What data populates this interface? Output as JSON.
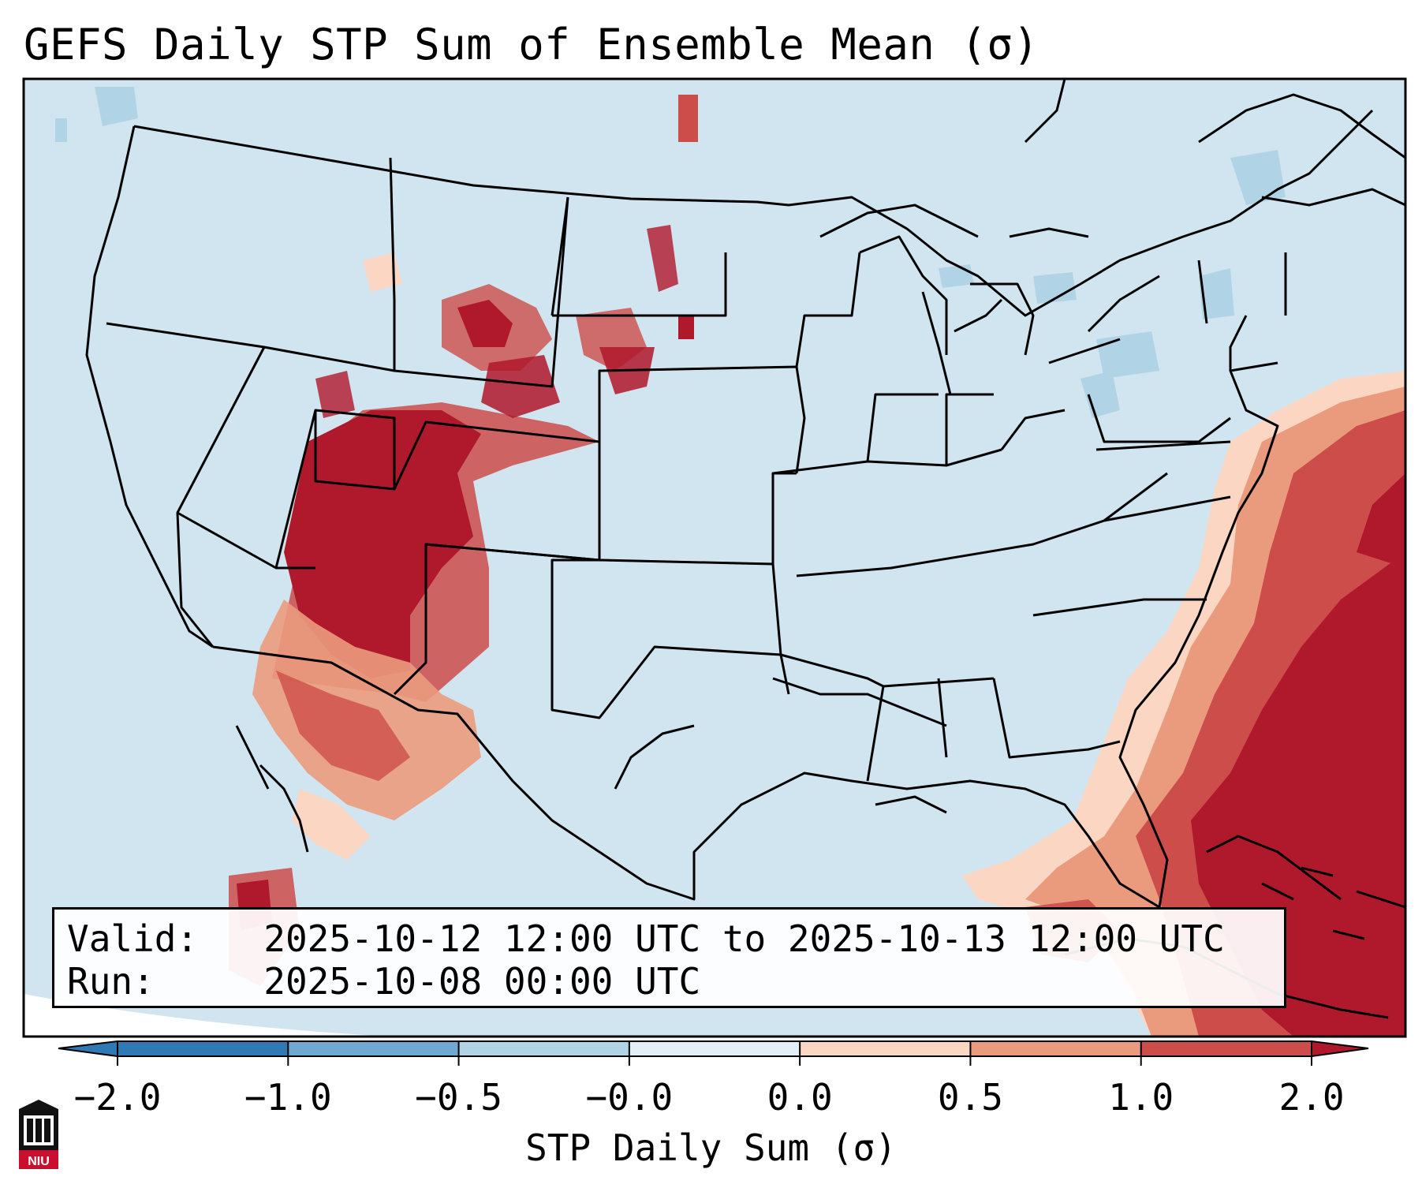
{
  "title": "GEFS Daily STP Sum of Ensemble Mean (σ)",
  "info": {
    "valid_label": "Valid:",
    "valid_value": "2025-10-12 12:00 UTC to 2025-10-13 12:00 UTC",
    "run_label": "Run:",
    "run_value": "2025-10-08 00:00 UTC"
  },
  "colorbar": {
    "label": "STP Daily Sum (σ)",
    "ticks": [
      "−2.0",
      "−1.0",
      "−0.5",
      "−0.0",
      "0.0",
      "0.5",
      "1.0",
      "2.0"
    ],
    "colors": [
      "#2f79b5",
      "#6fa9d1",
      "#b0d4e6",
      "#e3eef5",
      "#fbd6c2",
      "#eb9b7d",
      "#cd4d4a",
      "#b0182b"
    ],
    "extend": "both"
  },
  "map": {
    "background_color": "#d1e5f0",
    "region": "Contiguous United States",
    "highlights": [
      {
        "region": "Utah / Colorado / Arizona",
        "value_sigma": 2.0
      },
      {
        "region": "Western Atlantic / Florida / Bahamas",
        "value_sigma": 2.0
      },
      {
        "region": "Montana / Wyoming / Dakotas",
        "value_sigma": 1.5
      }
    ]
  },
  "logo": {
    "text": "NIU"
  }
}
